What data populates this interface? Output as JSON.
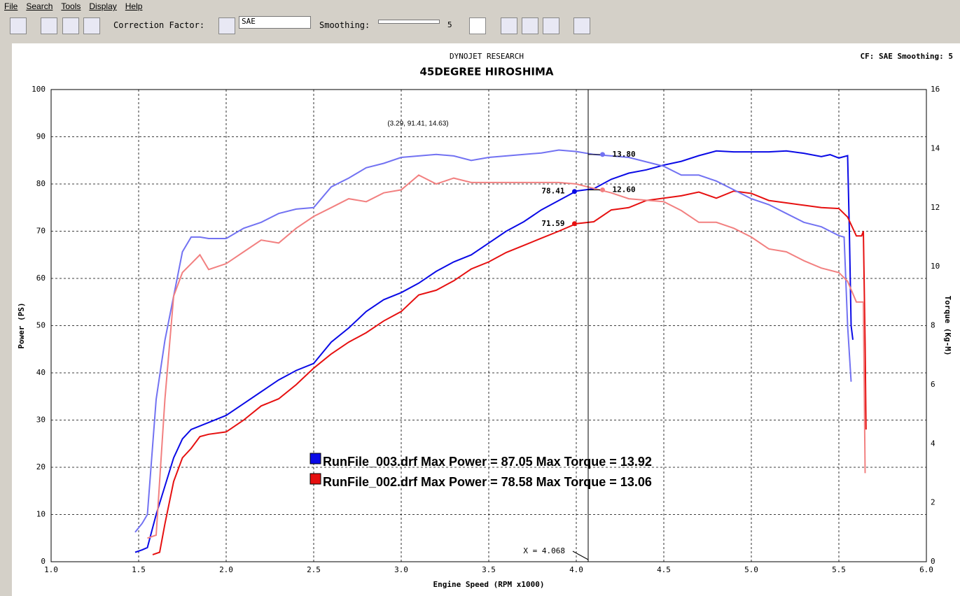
{
  "menu": [
    "File",
    "Search",
    "Tools",
    "Display",
    "Help"
  ],
  "toolbar": {
    "correction_label": "Correction Factor:",
    "correction_value": "SAE",
    "smoothing_label": "Smoothing:",
    "smoothing_value": "5"
  },
  "chart_data": {
    "type": "line",
    "header": "DYNOJET RESEARCH",
    "status": "CF: SAE  Smoothing: 5",
    "title": "45DEGREE HIROSHIMA",
    "xlabel": "Engine Speed (RPM x1000)",
    "ylabel": "Power (PS)",
    "y2label": "Torque (Kg-M)",
    "xlim": [
      1,
      6
    ],
    "xticks": [
      {
        "value": 1,
        "label": "1.0"
      },
      {
        "value": 1.5,
        "label": "1.5"
      },
      {
        "value": 2,
        "label": "2.0"
      },
      {
        "value": 2.5,
        "label": "2.5"
      },
      {
        "value": 3,
        "label": "3.0"
      },
      {
        "value": 3.5,
        "label": "3.5"
      },
      {
        "value": 4,
        "label": "4.0"
      },
      {
        "value": 4.5,
        "label": "4.5"
      },
      {
        "value": 5,
        "label": "5.0"
      },
      {
        "value": 5.5,
        "label": "5.5"
      },
      {
        "value": 6,
        "label": "6.0"
      }
    ],
    "ylim": [
      0,
      100
    ],
    "yticks": [
      0,
      10,
      20,
      30,
      40,
      50,
      60,
      70,
      80,
      90,
      100
    ],
    "y2lim": [
      0,
      16
    ],
    "y2ticks": [
      0,
      2,
      4,
      6,
      8,
      10,
      12,
      14,
      16
    ],
    "grid": true,
    "series": [
      {
        "color": "#0a0ae6",
        "x": [
          1.48,
          1.52,
          1.55,
          1.6,
          1.65,
          1.7,
          1.75,
          1.8,
          1.9,
          2.0,
          2.1,
          2.2,
          2.3,
          2.4,
          2.5,
          2.6,
          2.7,
          2.8,
          2.9,
          3.0,
          3.1,
          3.2,
          3.3,
          3.4,
          3.5,
          3.6,
          3.7,
          3.8,
          3.9,
          4.0,
          4.1,
          4.2,
          4.3,
          4.4,
          4.5,
          4.6,
          4.7,
          4.8,
          4.9,
          5.0,
          5.1,
          5.2,
          5.3,
          5.4,
          5.45,
          5.5,
          5.55,
          5.56,
          5.57,
          5.58
        ],
        "values": [
          2,
          2.5,
          3,
          10,
          16,
          22,
          26,
          28,
          29.5,
          31,
          33.5,
          36,
          38.5,
          40.5,
          42,
          46.5,
          49.5,
          53,
          55.5,
          57,
          59,
          61.5,
          63.5,
          65,
          67.5,
          70,
          72,
          74.5,
          76.5,
          78.5,
          79,
          81,
          82.3,
          83,
          84,
          84.8,
          86,
          87,
          86.8,
          86.8,
          86.8,
          87,
          86.5,
          85.8,
          86.2,
          85.5,
          86,
          70,
          50,
          47
        ]
      },
      {
        "color": "#e61010",
        "x": [
          1.58,
          1.62,
          1.65,
          1.7,
          1.75,
          1.8,
          1.85,
          1.9,
          2.0,
          2.1,
          2.2,
          2.3,
          2.4,
          2.5,
          2.6,
          2.7,
          2.8,
          2.9,
          3.0,
          3.1,
          3.2,
          3.3,
          3.4,
          3.5,
          3.6,
          3.7,
          3.8,
          3.9,
          4.0,
          4.1,
          4.2,
          4.3,
          4.4,
          4.5,
          4.6,
          4.7,
          4.8,
          4.9,
          5.0,
          5.1,
          5.2,
          5.3,
          5.4,
          5.5,
          5.55,
          5.6,
          5.63,
          5.64,
          5.65,
          5.655
        ],
        "values": [
          1.5,
          2,
          8,
          17,
          22,
          24,
          26.5,
          27,
          27.5,
          30,
          33,
          34.5,
          37.5,
          41,
          44,
          46.5,
          48.5,
          51,
          53,
          56.5,
          57.5,
          59.5,
          62,
          63.5,
          65.5,
          67,
          68.5,
          70,
          71.6,
          72,
          74.5,
          75,
          76.5,
          77,
          77.5,
          78.3,
          77,
          78.5,
          78,
          76.5,
          76,
          75.5,
          75,
          74.8,
          73,
          69,
          69,
          70,
          46,
          28
        ]
      },
      {
        "color": "#7272f2",
        "axis": "y2",
        "x": [
          1.48,
          1.52,
          1.55,
          1.6,
          1.65,
          1.7,
          1.75,
          1.8,
          1.85,
          1.9,
          2.0,
          2.1,
          2.2,
          2.3,
          2.4,
          2.5,
          2.6,
          2.7,
          2.8,
          2.9,
          3.0,
          3.1,
          3.2,
          3.3,
          3.4,
          3.5,
          3.6,
          3.7,
          3.8,
          3.9,
          4.0,
          4.1,
          4.2,
          4.3,
          4.4,
          4.5,
          4.6,
          4.7,
          4.8,
          4.9,
          5.0,
          5.1,
          5.2,
          5.3,
          5.4,
          5.5,
          5.53,
          5.55,
          5.57
        ],
        "values": [
          1,
          1.3,
          1.6,
          5.5,
          7.5,
          9,
          10.5,
          11,
          11,
          10.95,
          10.95,
          11.3,
          11.5,
          11.8,
          11.95,
          12,
          12.7,
          13,
          13.35,
          13.5,
          13.7,
          13.75,
          13.8,
          13.75,
          13.6,
          13.7,
          13.75,
          13.8,
          13.85,
          13.95,
          13.9,
          13.8,
          13.75,
          13.7,
          13.55,
          13.4,
          13.1,
          13.1,
          12.9,
          12.6,
          12.3,
          12.1,
          11.8,
          11.5,
          11.35,
          11.05,
          11,
          8,
          6.1
        ]
      },
      {
        "color": "#f28080",
        "axis": "y2",
        "x": [
          1.55,
          1.6,
          1.65,
          1.7,
          1.75,
          1.8,
          1.85,
          1.9,
          2.0,
          2.1,
          2.2,
          2.3,
          2.4,
          2.5,
          2.6,
          2.7,
          2.8,
          2.9,
          3.0,
          3.1,
          3.2,
          3.3,
          3.4,
          3.5,
          3.6,
          3.7,
          3.8,
          3.9,
          4.0,
          4.1,
          4.2,
          4.3,
          4.4,
          4.5,
          4.6,
          4.7,
          4.8,
          4.9,
          5.0,
          5.1,
          5.2,
          5.3,
          5.4,
          5.5,
          5.55,
          5.6,
          5.64,
          5.65
        ],
        "values": [
          0.8,
          0.9,
          5.5,
          9,
          9.8,
          10.1,
          10.4,
          9.9,
          10.1,
          10.5,
          10.9,
          10.8,
          11.3,
          11.7,
          12,
          12.3,
          12.2,
          12.5,
          12.6,
          13.1,
          12.8,
          13,
          12.85,
          12.85,
          12.85,
          12.85,
          12.85,
          12.85,
          12.8,
          12.65,
          12.5,
          12.3,
          12.25,
          12.2,
          11.9,
          11.5,
          11.5,
          11.3,
          11,
          10.6,
          10.5,
          10.2,
          9.95,
          9.8,
          9.5,
          8.8,
          8.8,
          3
        ]
      }
    ],
    "cursor": {
      "value": 4.068,
      "label": "X = 4.068"
    },
    "readouts": [
      {
        "x": 3.99,
        "value": 78.41,
        "label": "78.41",
        "color": "#0a0ae6"
      },
      {
        "x": 3.99,
        "value": 71.59,
        "label": "71.59",
        "color": "#e61010"
      },
      {
        "x": 4.15,
        "value": 13.8,
        "label": "13.80",
        "color": "#7272f2",
        "axis": "y2"
      },
      {
        "x": 4.15,
        "value": 12.6,
        "label": "12.60",
        "color": "#f28080",
        "axis": "y2"
      }
    ],
    "annotation": "(3.29, 91.41, 14.63)",
    "legend": [
      {
        "text": "RunFile_003.drf Max Power = 87.05  Max Torque = 13.92",
        "color": "#0a0ae6"
      },
      {
        "text": "RunFile_002.drf Max Power = 78.58  Max Torque = 13.06",
        "color": "#e61010"
      }
    ]
  }
}
